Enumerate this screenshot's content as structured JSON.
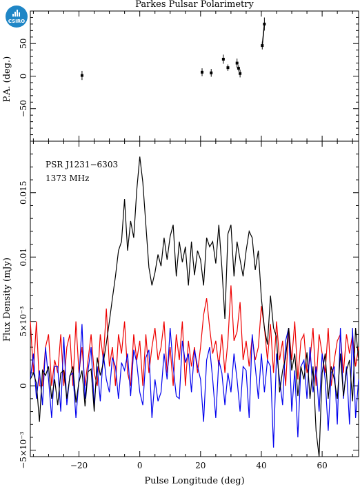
{
  "title": "Parkes Pulsar Polarimetry",
  "logo": {
    "text": "CSIRO",
    "color": "#1f86c6",
    "icon": "csiro-logo-icon"
  },
  "annotation": {
    "line1": "PSR J1231−6303",
    "line2": "1373 MHz"
  },
  "colors": {
    "total": "#000000",
    "linear": "#ee0000",
    "circular": "#0000ee"
  },
  "chart_data": [
    {
      "panel": "position-angle",
      "type": "scatter",
      "ylabel": "P.A. (deg.)",
      "xlim": [
        -36,
        72
      ],
      "ylim": [
        -100,
        100
      ],
      "yticks": [
        -50,
        0,
        50
      ],
      "ytick_labels": [
        "−50",
        "0",
        "50"
      ],
      "points": [
        {
          "x": -19,
          "y": 1,
          "err": 7
        },
        {
          "x": 20.5,
          "y": 6,
          "err": 6
        },
        {
          "x": 23.5,
          "y": 5,
          "err": 6
        },
        {
          "x": 27.5,
          "y": 26,
          "err": 7
        },
        {
          "x": 29,
          "y": 13,
          "err": 5
        },
        {
          "x": 32,
          "y": 20,
          "err": 7
        },
        {
          "x": 32.5,
          "y": 12,
          "err": 5
        },
        {
          "x": 33,
          "y": 4,
          "err": 6
        },
        {
          "x": 40.3,
          "y": 47,
          "err": 6
        },
        {
          "x": 41,
          "y": 80,
          "err": 10
        }
      ]
    },
    {
      "panel": "flux-profile",
      "type": "line",
      "xlabel": "Pulse Longitude (deg)",
      "ylabel": "Flux Density (mJy)",
      "xlim": [
        -36,
        72
      ],
      "ylim": [
        -0.0055,
        0.019
      ],
      "xticks": [
        -20,
        0,
        20,
        40,
        60
      ],
      "xtick_labels": [
        "−20",
        "0",
        "20",
        "40",
        "60"
      ],
      "yticks": [
        -0.005,
        0,
        0.005,
        0.01,
        0.015
      ],
      "ytick_labels": [
        "−5×10⁻³",
        "0",
        "5×10⁻³",
        "0.01",
        "0.015"
      ],
      "series": [
        {
          "id": "total",
          "x": [
            -36,
            -35,
            -34,
            -33,
            -32,
            -31,
            -30,
            -29,
            -28,
            -27,
            -26,
            -25,
            -24,
            -23,
            -22,
            -21,
            -20,
            -19,
            -18,
            -17,
            -16,
            -15,
            -14,
            -13,
            -12,
            -11,
            -10,
            -9,
            -8,
            -7,
            -6,
            -5,
            -4,
            -3,
            -2,
            -1,
            0,
            1,
            2,
            3,
            4,
            5,
            6,
            7,
            8,
            9,
            10,
            11,
            12,
            13,
            14,
            15,
            16,
            17,
            18,
            19,
            20,
            21,
            22,
            23,
            24,
            25,
            26,
            27,
            28,
            29,
            30,
            31,
            32,
            33,
            34,
            35,
            36,
            37,
            38,
            39,
            40,
            41,
            42,
            43,
            44,
            45,
            46,
            47,
            48,
            49,
            50,
            51,
            52,
            53,
            54,
            55,
            56,
            57,
            58,
            59,
            60,
            61,
            62,
            63,
            64,
            65,
            66,
            67,
            68,
            69,
            70,
            71,
            72
          ],
          "y": [
            0.0005,
            0.001,
            0.0002,
            -0.0028,
            0.0012,
            0.0008,
            0.0015,
            -0.001,
            0.0005,
            -0.0015,
            0.001,
            0.0012,
            -0.001,
            0.0007,
            0.0015,
            -0.0013,
            0.0003,
            0.0012,
            -0.0016,
            0.0011,
            0.0013,
            -0.002,
            0.0022,
            0.0008,
            0.0018,
            0.0033,
            0.005,
            0.0068,
            0.0085,
            0.0105,
            0.0112,
            0.0145,
            0.0105,
            0.0128,
            0.0115,
            0.0152,
            0.0178,
            0.0158,
            0.0125,
            0.0092,
            0.0078,
            0.0088,
            0.0102,
            0.0093,
            0.0115,
            0.0098,
            0.0116,
            0.0125,
            0.0085,
            0.0112,
            0.0096,
            0.0108,
            0.0078,
            0.0112,
            0.0086,
            0.0105,
            0.0098,
            0.0078,
            0.0115,
            0.0108,
            0.0112,
            0.0095,
            0.0125,
            0.0092,
            0.0052,
            0.0118,
            0.0125,
            0.0085,
            0.0112,
            0.0098,
            0.0085,
            0.0105,
            0.012,
            0.0115,
            0.009,
            0.0105,
            0.0068,
            0.0045,
            0.0032,
            0.007,
            0.0045,
            0.0038,
            -0.0005,
            0.0012,
            0.0022,
            0.0045,
            0.0012,
            0.0025,
            -0.0008,
            0.0015,
            0.0005,
            0.0026,
            -0.001,
            0.0015,
            -0.0035,
            -0.0055,
            0.001,
            0.0025,
            -0.001,
            0.0015,
            0.0005,
            -0.001,
            0.0025,
            -0.0008,
            0.0012,
            0.002,
            -0.0012,
            0.0045,
            0.002
          ]
        },
        {
          "id": "linear",
          "x": [
            -36,
            -35,
            -34,
            -33,
            -32,
            -31,
            -30,
            -29,
            -28,
            -27,
            -26,
            -25,
            -24,
            -23,
            -22,
            -21,
            -20,
            -19,
            -18,
            -17,
            -16,
            -15,
            -14,
            -13,
            -12,
            -11,
            -10,
            -9,
            -8,
            -7,
            -6,
            -5,
            -4,
            -3,
            -2,
            -1,
            0,
            1,
            2,
            3,
            4,
            5,
            6,
            7,
            8,
            9,
            10,
            11,
            12,
            13,
            14,
            15,
            16,
            17,
            18,
            19,
            20,
            21,
            22,
            23,
            24,
            25,
            26,
            27,
            28,
            29,
            30,
            31,
            32,
            33,
            34,
            35,
            36,
            37,
            38,
            39,
            40,
            41,
            42,
            43,
            44,
            45,
            46,
            47,
            48,
            49,
            50,
            51,
            52,
            53,
            54,
            55,
            56,
            57,
            58,
            59,
            60,
            61,
            62,
            63,
            64,
            65,
            66,
            67,
            68,
            69,
            70,
            71,
            72
          ],
          "y": [
            0.005,
            0.001,
            0.005,
            0,
            0,
            0.003,
            0.004,
            0,
            0.002,
            0.001,
            0.004,
            0,
            0.003,
            0.004,
            0,
            0.005,
            0.001,
            0.003,
            0,
            0.002,
            0.004,
            0.001,
            0,
            0.004,
            0.002,
            0.006,
            0.0015,
            0.003,
            0,
            0.004,
            0.0025,
            0.005,
            0.001,
            0,
            0.004,
            0.002,
            0.0035,
            0,
            0.004,
            0.001,
            0.003,
            0.0045,
            0.002,
            0.003,
            0.005,
            0.001,
            0.003,
            0,
            0.004,
            0.002,
            0.005,
            0,
            0.0035,
            0.0015,
            0.003,
            0.001,
            0.003,
            0.0055,
            0.0068,
            0.0045,
            0.0025,
            0.0035,
            0.0015,
            0.004,
            0.001,
            0.0035,
            0.0078,
            0.0035,
            0.0042,
            0.0065,
            0.002,
            0.0035,
            0.0015,
            0.0038,
            0.002,
            0.003,
            0.0062,
            0.0045,
            0.002,
            0.0048,
            0.001,
            0.005,
            0.002,
            0.0035,
            0,
            0.0045,
            0.002,
            0.005,
            0.0005,
            0.0035,
            0.004,
            0.001,
            0.002,
            0.0045,
            0,
            0.004,
            0.0025,
            0.001,
            0.0045,
            0,
            0.002,
            0.0035,
            0.004,
            0.001,
            0.004,
            0.0025,
            0.004,
            0.0015,
            0.003
          ]
        },
        {
          "id": "circular",
          "x": [
            -36,
            -35,
            -34,
            -33,
            -32,
            -31,
            -30,
            -29,
            -28,
            -27,
            -26,
            -25,
            -24,
            -23,
            -22,
            -21,
            -20,
            -19,
            -18,
            -17,
            -16,
            -15,
            -14,
            -13,
            -12,
            -11,
            -10,
            -9,
            -8,
            -7,
            -6,
            -5,
            -4,
            -3,
            -2,
            -1,
            0,
            1,
            2,
            3,
            4,
            5,
            6,
            7,
            8,
            9,
            10,
            11,
            12,
            13,
            14,
            15,
            16,
            17,
            18,
            19,
            20,
            21,
            22,
            23,
            24,
            25,
            26,
            27,
            28,
            29,
            30,
            31,
            32,
            33,
            34,
            35,
            36,
            37,
            38,
            39,
            40,
            41,
            42,
            43,
            44,
            45,
            46,
            47,
            48,
            49,
            50,
            51,
            52,
            53,
            54,
            55,
            56,
            57,
            58,
            59,
            60,
            61,
            62,
            63,
            64,
            65,
            66,
            67,
            68,
            69,
            70,
            71,
            72
          ],
          "y": [
            0.0005,
            0.0025,
            -0.001,
            0.0012,
            -0.0015,
            0.003,
            0.0005,
            -0.0025,
            0.0015,
            0.0015,
            -0.002,
            0.0038,
            -0.0015,
            0.0008,
            0.001,
            -0.0025,
            0.0005,
            0.0048,
            -0.001,
            0.0012,
            0.003,
            -0.0015,
            0.0015,
            -0.0012,
            0.0025,
            0.0005,
            -0.0005,
            0.0022,
            0.0015,
            -0.001,
            0.0018,
            0.0012,
            0.0025,
            -0.0008,
            0.0028,
            0.0018,
            -0.0005,
            -0.0015,
            0.0022,
            0.0028,
            -0.0025,
            0.0005,
            -0.0012,
            -0.0005,
            0.0025,
            0.0005,
            0.0045,
            0.0015,
            -0.0008,
            -0.001,
            0.0035,
            0.0018,
            0.0025,
            -0.0005,
            0.0028,
            0.0015,
            0.0005,
            -0.0028,
            0.002,
            0.003,
            0.0005,
            -0.0025,
            0.002,
            0.001,
            -0.0015,
            0.001,
            -0.0005,
            0.0025,
            0.0005,
            -0.002,
            0.0015,
            0.0012,
            -0.0025,
            0.004,
            0.0015,
            -0.001,
            0.0025,
            -0.0005,
            0.002,
            0.0015,
            -0.0048,
            0.0025,
            0.0005,
            -0.0015,
            0.0035,
            0.0045,
            -0.002,
            0.0012,
            -0.004,
            0.0015,
            0.002,
            -0.001,
            0.003,
            -0.0005,
            0.0015,
            -0.002,
            0.0025,
            0.0005,
            -0.0035,
            0.001,
            0.0015,
            -0.003,
            0.0045,
            -0.001,
            0.0015,
            -0.003,
            0.0045,
            -0.0025,
            0.0005
          ]
        }
      ]
    }
  ]
}
